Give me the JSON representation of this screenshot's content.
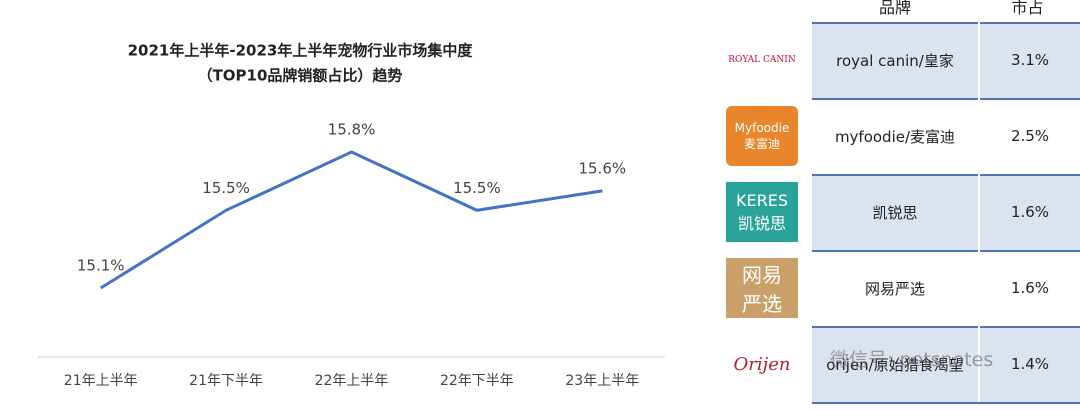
{
  "chart_data": {
    "type": "line",
    "title": "2021年上半年-2023年上半年宠物行业市场集中度",
    "subtitle": "（TOP10品牌销额占比）趋势",
    "categories": [
      "21年上半年",
      "21年下半年",
      "22年上半年",
      "22年下半年",
      "23年上半年"
    ],
    "values": [
      15.1,
      15.5,
      15.8,
      15.5,
      15.6
    ],
    "value_labels": [
      "15.1%",
      "15.5%",
      "15.8%",
      "15.5%",
      "15.6%"
    ],
    "color": "#4472c4"
  },
  "table": {
    "header": [
      "品牌",
      "市占"
    ],
    "rows": [
      {
        "logo": [
          "ROYAL CANIN"
        ],
        "brand": "royal canin/皇家",
        "share": "3.1%"
      },
      {
        "logo": [
          "Myfoodie",
          "麦富迪"
        ],
        "brand": "myfoodie/麦富迪",
        "share": "2.5%"
      },
      {
        "logo": [
          "KERES",
          "凯锐思"
        ],
        "brand": "凯锐思",
        "share": "1.6%"
      },
      {
        "logo": [
          "网易",
          "严选"
        ],
        "brand": "网易严选",
        "share": "1.6%"
      },
      {
        "logo": [
          "Orijen"
        ],
        "brand": "orijen/原始猎食渴望",
        "share": "1.4%"
      }
    ]
  },
  "watermark": "微信号: petsnotes"
}
